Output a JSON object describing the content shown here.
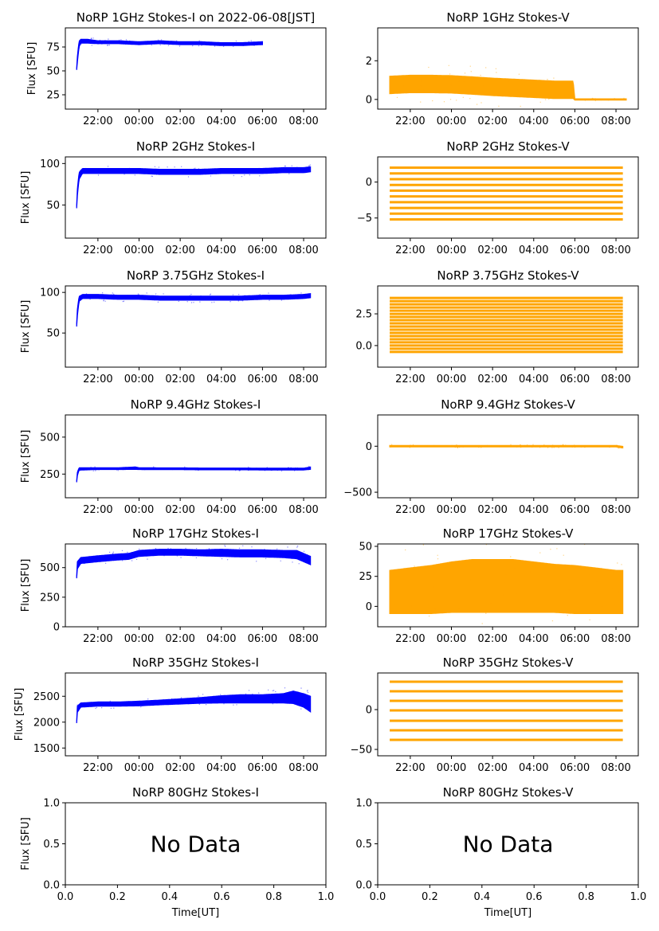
{
  "figure": {
    "xlabel": "Time[UT]",
    "time_ticks": [
      "22:00",
      "00:00",
      "02:00",
      "04:00",
      "06:00",
      "08:00"
    ],
    "colors": {
      "stokes_i": "#0000ff",
      "stokes_v": "#ffa500",
      "axes": "#000000"
    }
  },
  "chart_data": [
    {
      "id": "1ghz-i",
      "type": "scatter",
      "title": "NoRP 1GHz Stokes-I on 2022-06-08[JST]",
      "ylabel": "Flux [SFU]",
      "xlim": [
        "20:25",
        "09:05"
      ],
      "ylim": [
        10,
        95
      ],
      "yticks": [
        "25",
        "50",
        "75"
      ],
      "series": [
        {
          "x": [
            "20:58",
            "21:00",
            "21:05",
            "21:10",
            "21:30",
            "22:00",
            "23:00",
            "00:00",
            "01:00",
            "02:00",
            "03:00",
            "04:00",
            "05:00",
            "06:00"
          ],
          "y": [
            52,
            62,
            78,
            81,
            81,
            80,
            80,
            79,
            80,
            79,
            79,
            78,
            78,
            79
          ],
          "spread": [
            1,
            3,
            3,
            2,
            2,
            1.5,
            1.5,
            1.5,
            1.5,
            1.5,
            1.5,
            1.5,
            1.5,
            1.5
          ]
        }
      ]
    },
    {
      "id": "1ghz-v",
      "type": "scatter",
      "title": "NoRP 1GHz Stokes-V",
      "ylabel": "",
      "xlim": [
        "20:25",
        "09:05"
      ],
      "ylim": [
        -0.5,
        3.7
      ],
      "yticks": [
        "0",
        "2"
      ],
      "series": [
        {
          "x": [
            "21:00",
            "22:00",
            "23:00",
            "00:00",
            "01:00",
            "02:00",
            "03:00",
            "04:00",
            "05:00",
            "05:55",
            "06:00",
            "07:00",
            "08:00",
            "08:30"
          ],
          "y": [
            0.75,
            0.8,
            0.8,
            0.78,
            0.72,
            0.65,
            0.6,
            0.55,
            0.5,
            0.5,
            0,
            0,
            0,
            0
          ],
          "spread": [
            0.45,
            0.45,
            0.45,
            0.45,
            0.45,
            0.45,
            0.45,
            0.45,
            0.45,
            0.45,
            0.03,
            0.03,
            0.03,
            0.03
          ]
        }
      ]
    },
    {
      "id": "2ghz-i",
      "type": "scatter",
      "title": "NoRP 2GHz Stokes-I",
      "ylabel": "Flux [SFU]",
      "xlim": [
        "20:25",
        "09:05"
      ],
      "ylim": [
        10,
        108
      ],
      "yticks": [
        "50",
        "100"
      ],
      "series": [
        {
          "x": [
            "20:58",
            "21:00",
            "21:05",
            "21:15",
            "22:00",
            "23:00",
            "00:00",
            "01:00",
            "02:00",
            "03:00",
            "04:00",
            "05:00",
            "06:00",
            "07:00",
            "08:00",
            "08:20"
          ],
          "y": [
            48,
            65,
            85,
            91,
            91,
            91,
            91,
            90,
            90,
            90,
            91,
            91,
            91,
            92,
            92,
            93
          ],
          "spread": [
            2,
            4,
            4,
            3,
            3,
            3,
            3,
            3,
            3,
            3,
            3,
            3,
            3,
            3,
            3,
            3
          ]
        }
      ]
    },
    {
      "id": "2ghz-v",
      "type": "scatter",
      "title": "NoRP 2GHz Stokes-V",
      "ylabel": "",
      "xlim": [
        "20:25",
        "09:05"
      ],
      "ylim": [
        -7.8,
        3.5
      ],
      "yticks": [
        "-5",
        "0"
      ],
      "series": [
        {
          "x": [
            "21:00",
            "08:20"
          ],
          "y": [
            2,
            2
          ],
          "levels": [
            2,
            1.2,
            0.4,
            -0.4,
            -1.2,
            -2,
            -2.8,
            -3.6,
            -4.4,
            -5.2
          ]
        }
      ]
    },
    {
      "id": "3ghz-i",
      "type": "scatter",
      "title": "NoRP 3.75GHz Stokes-I",
      "ylabel": "Flux [SFU]",
      "xlim": [
        "20:25",
        "09:05"
      ],
      "ylim": [
        8,
        108
      ],
      "yticks": [
        "50",
        "100"
      ],
      "series": [
        {
          "x": [
            "20:58",
            "21:00",
            "21:05",
            "21:15",
            "22:00",
            "23:00",
            "00:00",
            "01:00",
            "02:00",
            "03:00",
            "04:00",
            "05:00",
            "06:00",
            "07:00",
            "08:00",
            "08:20"
          ],
          "y": [
            60,
            75,
            92,
            95,
            95,
            94,
            94,
            93,
            93,
            93,
            93,
            93,
            94,
            94,
            95,
            96
          ],
          "spread": [
            2,
            4,
            3,
            2.5,
            2.5,
            2.5,
            2.5,
            2.5,
            2.5,
            2.5,
            2.5,
            2.5,
            2.5,
            2.5,
            2.5,
            2.5
          ]
        }
      ]
    },
    {
      "id": "3ghz-v",
      "type": "scatter",
      "title": "NoRP 3.75GHz Stokes-V",
      "ylabel": "",
      "xlim": [
        "20:25",
        "09:05"
      ],
      "ylim": [
        -1.7,
        4.7
      ],
      "yticks": [
        "0.0",
        "2.5"
      ],
      "series": [
        {
          "x": [
            "21:00",
            "08:20"
          ],
          "y": [
            0,
            0
          ],
          "levels": [
            -0.5,
            -0.25,
            0,
            0.25,
            0.5,
            0.75,
            1,
            1.25,
            1.5,
            1.75,
            2,
            2.25,
            2.5,
            2.75,
            3,
            3.25,
            3.5,
            3.75
          ]
        }
      ]
    },
    {
      "id": "9ghz-i",
      "type": "scatter",
      "title": "NoRP 9.4GHz Stokes-I",
      "ylabel": "Flux [SFU]",
      "xlim": [
        "20:25",
        "09:05"
      ],
      "ylim": [
        90,
        650
      ],
      "yticks": [
        "250",
        "500"
      ],
      "series": [
        {
          "x": [
            "20:58",
            "21:00",
            "21:05",
            "22:00",
            "23:00",
            "23:50",
            "00:00",
            "01:00",
            "02:00",
            "03:00",
            "04:00",
            "05:00",
            "06:00",
            "07:00",
            "08:00",
            "08:20"
          ],
          "y": [
            200,
            250,
            285,
            287,
            287,
            290,
            287,
            286,
            286,
            285,
            285,
            285,
            284,
            284,
            284,
            290
          ],
          "spread": [
            5,
            12,
            8,
            6,
            6,
            8,
            6,
            6,
            6,
            6,
            6,
            6,
            6,
            6,
            6,
            8
          ]
        }
      ]
    },
    {
      "id": "9ghz-v",
      "type": "scatter",
      "title": "NoRP 9.4GHz Stokes-V",
      "ylabel": "",
      "xlim": [
        "20:25",
        "09:05"
      ],
      "ylim": [
        -560,
        340
      ],
      "yticks": [
        "-500",
        "0"
      ],
      "series": [
        {
          "x": [
            "21:00",
            "22:00",
            "23:00",
            "00:00",
            "01:00",
            "02:00",
            "03:00",
            "04:00",
            "05:00",
            "06:00",
            "07:00",
            "08:00",
            "08:20"
          ],
          "y": [
            0,
            0,
            0,
            0,
            0,
            0,
            0,
            0,
            0,
            0,
            0,
            0,
            -10
          ],
          "spread": [
            8,
            8,
            8,
            8,
            8,
            8,
            8,
            8,
            8,
            8,
            8,
            8,
            8
          ]
        }
      ]
    },
    {
      "id": "17ghz-i",
      "type": "scatter",
      "title": "NoRP 17GHz Stokes-I",
      "ylabel": "Flux [SFU]",
      "xlim": [
        "20:25",
        "09:05"
      ],
      "ylim": [
        0,
        700
      ],
      "yticks": [
        "0",
        "250",
        "500"
      ],
      "series": [
        {
          "x": [
            "20:58",
            "21:00",
            "21:10",
            "22:00",
            "23:00",
            "23:30",
            "00:00",
            "01:00",
            "02:00",
            "03:00",
            "04:00",
            "05:00",
            "06:00",
            "07:00",
            "07:40",
            "08:00",
            "08:20"
          ],
          "y": [
            420,
            520,
            560,
            575,
            590,
            595,
            620,
            630,
            630,
            625,
            625,
            620,
            620,
            615,
            610,
            585,
            560
          ],
          "spread": [
            10,
            30,
            25,
            25,
            25,
            25,
            25,
            25,
            25,
            25,
            30,
            30,
            30,
            30,
            35,
            35,
            35
          ]
        }
      ]
    },
    {
      "id": "17ghz-v",
      "type": "scatter",
      "title": "NoRP 17GHz Stokes-V",
      "ylabel": "",
      "xlim": [
        "20:25",
        "09:05"
      ],
      "ylim": [
        -17,
        52
      ],
      "yticks": [
        "0",
        "25",
        "50"
      ],
      "series": [
        {
          "x": [
            "21:00",
            "22:00",
            "23:00",
            "00:00",
            "01:00",
            "02:00",
            "03:00",
            "04:00",
            "05:00",
            "06:00",
            "07:00",
            "08:00",
            "08:20"
          ],
          "y": [
            12,
            13,
            14,
            16,
            17,
            17,
            17,
            16,
            15,
            14,
            13,
            12,
            12
          ],
          "spread": [
            18,
            19,
            20,
            21,
            22,
            22,
            22,
            21,
            20,
            20,
            19,
            18,
            18
          ]
        }
      ]
    },
    {
      "id": "35ghz-i",
      "type": "scatter",
      "title": "NoRP 35GHz Stokes-I",
      "ylabel": "Flux [SFU]",
      "xlim": [
        "20:25",
        "09:05"
      ],
      "ylim": [
        1350,
        2950
      ],
      "yticks": [
        "1500",
        "2000",
        "2500"
      ],
      "series": [
        {
          "x": [
            "20:58",
            "21:00",
            "21:10",
            "22:00",
            "23:00",
            "00:00",
            "01:00",
            "02:00",
            "03:00",
            "04:00",
            "05:00",
            "06:00",
            "07:00",
            "07:30",
            "08:00",
            "08:20"
          ],
          "y": [
            2000,
            2250,
            2330,
            2350,
            2350,
            2360,
            2380,
            2400,
            2420,
            2440,
            2450,
            2450,
            2460,
            2480,
            2420,
            2350
          ],
          "spread": [
            20,
            60,
            40,
            40,
            40,
            45,
            45,
            50,
            55,
            70,
            80,
            80,
            90,
            120,
            130,
            150
          ]
        }
      ]
    },
    {
      "id": "35ghz-v",
      "type": "scatter",
      "title": "NoRP 35GHz Stokes-V",
      "ylabel": "",
      "xlim": [
        "20:25",
        "09:05"
      ],
      "ylim": [
        -58,
        46
      ],
      "yticks": [
        "-50",
        "0"
      ],
      "series": [
        {
          "x": [
            "21:00",
            "08:20"
          ],
          "y": [
            0,
            0
          ],
          "levels": [
            35,
            23,
            11,
            -1,
            -14,
            -26,
            -38
          ]
        }
      ]
    },
    {
      "id": "80ghz-i",
      "type": "empty",
      "title": "NoRP 80GHz Stokes-I",
      "ylabel": "Flux [SFU]",
      "xlabel": "Time[UT]",
      "xlim": [
        0,
        1
      ],
      "ylim": [
        0,
        1
      ],
      "xticks": [
        "0.0",
        "0.2",
        "0.4",
        "0.6",
        "0.8",
        "1.0"
      ],
      "yticks": [
        "0.0",
        "0.5",
        "1.0"
      ],
      "annotation": "No Data",
      "series": []
    },
    {
      "id": "80ghz-v",
      "type": "empty",
      "title": "NoRP 80GHz Stokes-V",
      "ylabel": "",
      "xlabel": "Time[UT]",
      "xlim": [
        0,
        1
      ],
      "ylim": [
        0,
        1
      ],
      "xticks": [
        "0.0",
        "0.2",
        "0.4",
        "0.6",
        "0.8",
        "1.0"
      ],
      "yticks": [
        "0.0",
        "0.5",
        "1.0"
      ],
      "annotation": "No Data",
      "series": []
    }
  ]
}
